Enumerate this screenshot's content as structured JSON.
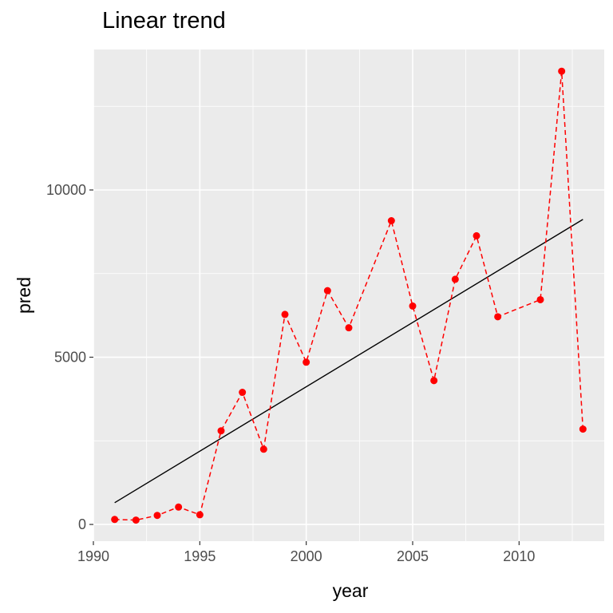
{
  "chart_data": {
    "type": "line",
    "title": "Linear trend",
    "xlabel": "year",
    "ylabel": "pred",
    "xlim": [
      1990,
      2014
    ],
    "ylim": [
      -500,
      14200
    ],
    "x_ticks": [
      1990,
      1995,
      2000,
      2005,
      2010
    ],
    "y_ticks": [
      0,
      5000,
      10000
    ],
    "x_tick_labels": [
      "1990",
      "1995",
      "2000",
      "2005",
      "2010"
    ],
    "y_tick_labels": [
      "0",
      "5000",
      "10000"
    ],
    "grid": true,
    "legend": "none",
    "series": [
      {
        "style": "dashed line with points",
        "color": "#ff0000",
        "x": [
          1991,
          1992,
          1993,
          1994,
          1995,
          1996,
          1997,
          1998,
          1999,
          2000,
          2001,
          2002,
          2004,
          2005,
          2006,
          2007,
          2008,
          2009,
          2011,
          2012,
          2013
        ],
        "y": [
          150,
          130,
          270,
          520,
          290,
          2800,
          3950,
          2250,
          6280,
          4850,
          6990,
          5880,
          9080,
          6530,
          4300,
          7330,
          8630,
          6210,
          6720,
          13550,
          2850
        ]
      },
      {
        "style": "solid trend line",
        "color": "#000000",
        "x": [
          1991,
          2013
        ],
        "y": [
          650,
          9120
        ]
      }
    ]
  }
}
